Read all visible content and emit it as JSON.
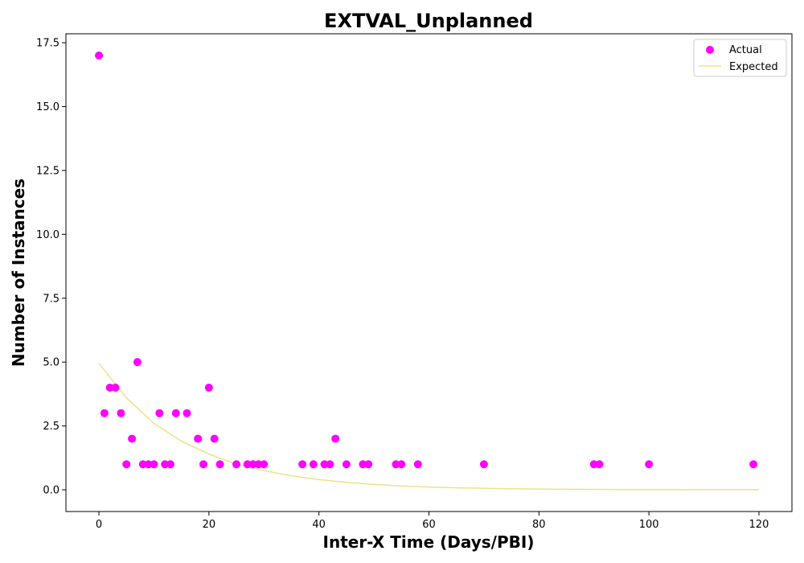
{
  "chart_data": {
    "type": "scatter",
    "title": "EXTVAL_Unplanned",
    "xlabel": "Inter-X Time (Days/PBI)",
    "ylabel": "Number of Instances",
    "xlim": [
      -6,
      126
    ],
    "ylim": [
      -0.85,
      17.85
    ],
    "xticks": [
      0,
      20,
      40,
      60,
      80,
      100,
      120
    ],
    "yticks": [
      0.0,
      2.5,
      5.0,
      7.5,
      10.0,
      12.5,
      15.0,
      17.5
    ],
    "xtick_labels": [
      "0",
      "20",
      "40",
      "60",
      "80",
      "100",
      "120"
    ],
    "ytick_labels": [
      "0.0",
      "2.5",
      "5.0",
      "7.5",
      "10.0",
      "12.5",
      "15.0",
      "17.5"
    ],
    "grid": false,
    "legend_position": "top-right",
    "series": [
      {
        "name": "Actual",
        "kind": "scatter",
        "color": "#ff00ff",
        "points": [
          [
            0,
            17
          ],
          [
            1,
            3
          ],
          [
            2,
            4
          ],
          [
            3,
            4
          ],
          [
            4,
            3
          ],
          [
            5,
            1
          ],
          [
            6,
            2
          ],
          [
            7,
            5
          ],
          [
            8,
            1
          ],
          [
            9,
            1
          ],
          [
            10,
            1
          ],
          [
            11,
            3
          ],
          [
            12,
            1
          ],
          [
            13,
            1
          ],
          [
            14,
            3
          ],
          [
            16,
            3
          ],
          [
            18,
            2
          ],
          [
            19,
            1
          ],
          [
            20,
            4
          ],
          [
            21,
            2
          ],
          [
            22,
            1
          ],
          [
            25,
            1
          ],
          [
            27,
            1
          ],
          [
            28,
            1
          ],
          [
            29,
            1
          ],
          [
            30,
            1
          ],
          [
            37,
            1
          ],
          [
            39,
            1
          ],
          [
            41,
            1
          ],
          [
            42,
            1
          ],
          [
            43,
            2
          ],
          [
            45,
            1
          ],
          [
            48,
            1
          ],
          [
            49,
            1
          ],
          [
            54,
            1
          ],
          [
            55,
            1
          ],
          [
            58,
            1
          ],
          [
            70,
            1
          ],
          [
            90,
            1
          ],
          [
            91,
            1
          ],
          [
            100,
            1
          ],
          [
            119,
            1
          ]
        ]
      },
      {
        "name": "Expected",
        "kind": "line",
        "color": "#f0e08a",
        "x": [
          0,
          5,
          10,
          15,
          20,
          25,
          30,
          35,
          40,
          45,
          50,
          55,
          60,
          65,
          70,
          75,
          80,
          85,
          90,
          95,
          100,
          105,
          110,
          115,
          120
        ],
        "y": [
          4.95,
          3.6,
          2.6,
          1.9,
          1.4,
          1.0,
          0.75,
          0.55,
          0.4,
          0.29,
          0.21,
          0.15,
          0.11,
          0.08,
          0.06,
          0.04,
          0.03,
          0.02,
          0.015,
          0.01,
          0.008,
          0.006,
          0.004,
          0.003,
          0.002
        ]
      }
    ]
  }
}
